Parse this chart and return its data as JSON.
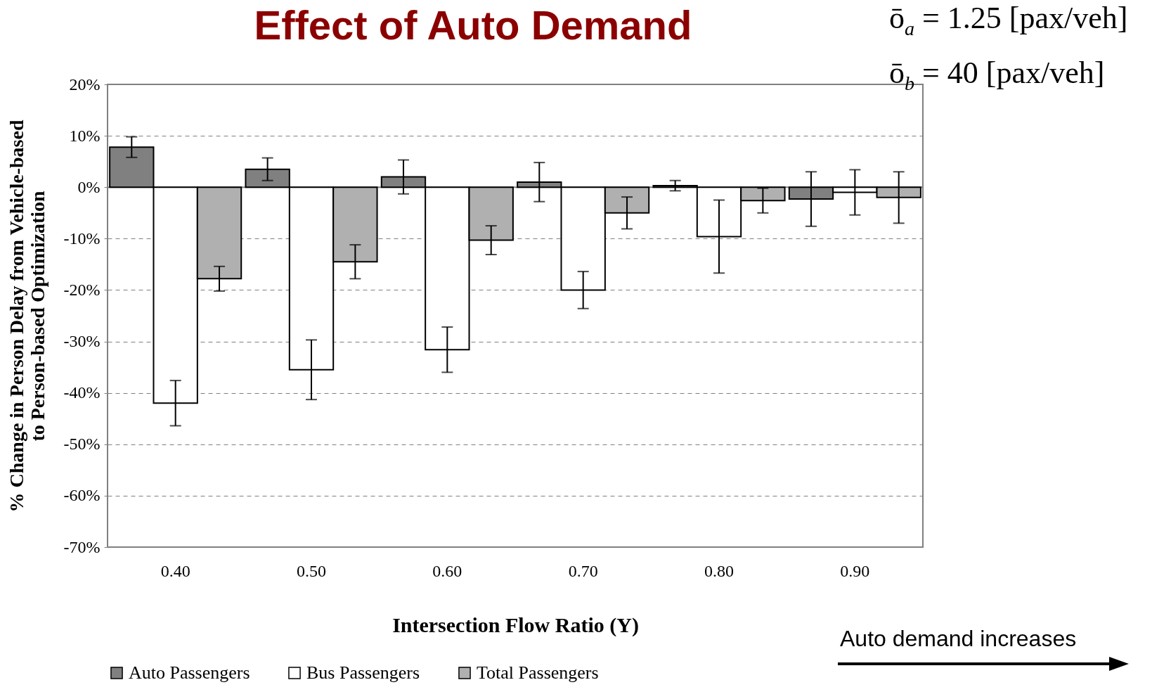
{
  "chart_data": {
    "type": "bar",
    "title": "Effect of Auto Demand",
    "xlabel": "Intersection Flow Ratio (Y)",
    "ylabel": "% Change in Person Delay from Vehicle-based to Person-based Optimization",
    "categories": [
      "0.40",
      "0.50",
      "0.60",
      "0.70",
      "0.80",
      "0.90"
    ],
    "series": [
      {
        "name": "Auto Passengers",
        "color": "#808080",
        "values": [
          7.8,
          3.5,
          2.0,
          1.0,
          0.3,
          -2.3
        ],
        "errors": [
          2,
          2.2,
          3.3,
          3.8,
          1,
          5.3
        ]
      },
      {
        "name": "Bus Passengers",
        "color": "#ffffff",
        "values": [
          -42.0,
          -35.5,
          -31.6,
          -20.0,
          -9.6,
          -1.0
        ],
        "errors": [
          4.4,
          5.8,
          4.4,
          3.6,
          7.1,
          4.4
        ]
      },
      {
        "name": "Total Passengers",
        "color": "#b0b0b0",
        "values": [
          -17.8,
          -14.5,
          -10.3,
          -5.0,
          -2.6,
          -2.0
        ],
        "errors": [
          2.4,
          3.3,
          2.8,
          3.1,
          2.4,
          5
        ]
      }
    ],
    "ylim": [
      -70,
      20
    ],
    "yticks": [
      {
        "value": -70,
        "label": "-70%"
      },
      {
        "value": -60,
        "label": "-60%"
      },
      {
        "value": -50,
        "label": "-50%"
      },
      {
        "value": -40,
        "label": "-40%"
      },
      {
        "value": -30,
        "label": "-30%"
      },
      {
        "value": -20,
        "label": "-20%"
      },
      {
        "value": -10,
        "label": "-10%"
      },
      {
        "value": 0,
        "label": "0%"
      },
      {
        "value": 10,
        "label": "10%"
      },
      {
        "value": 20,
        "label": "20%"
      }
    ],
    "grid": "y",
    "legend": "bottom",
    "ref_lines": [
      {
        "axis": "y",
        "value": 0,
        "color": "#808080"
      }
    ],
    "annotations": [
      "ō$_{a}$ = 1.25 [pax/veh]",
      "ō$_{b}$ = 40 [pax/veh]",
      "Auto demand  increases"
    ]
  }
}
